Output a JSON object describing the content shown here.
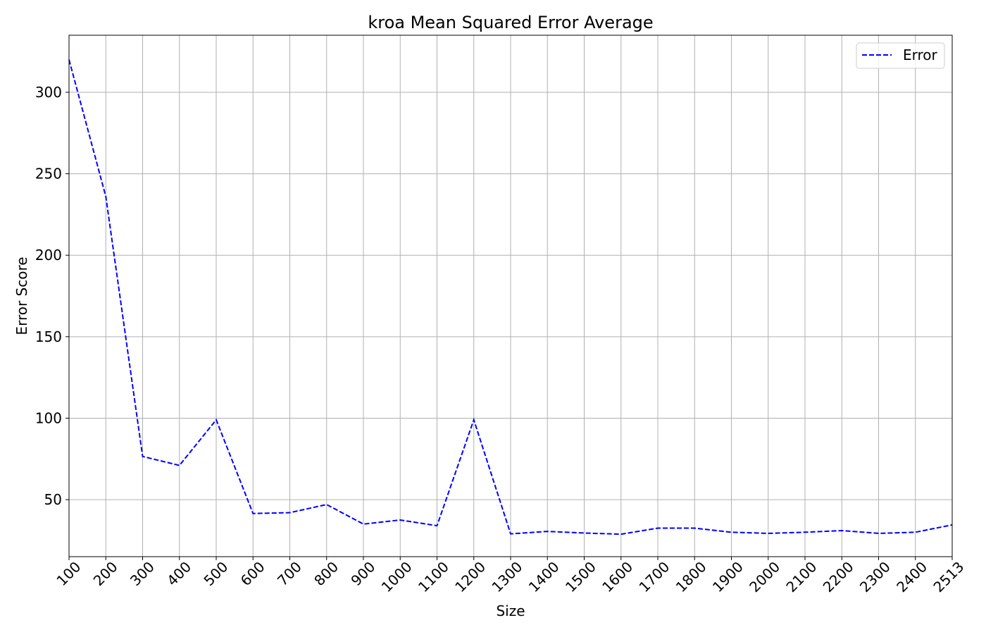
{
  "chart_data": {
    "type": "line",
    "title": "kroa Mean Squared Error Average",
    "xlabel": "Size",
    "ylabel": "Error Score",
    "x_tick_labels": [
      "100",
      "200",
      "300",
      "400",
      "500",
      "600",
      "700",
      "800",
      "900",
      "1000",
      "1100",
      "1200",
      "1300",
      "1400",
      "1500",
      "1600",
      "1700",
      "1800",
      "1900",
      "2000",
      "2100",
      "2200",
      "2300",
      "2400",
      "2513"
    ],
    "y_ticks": [
      50,
      100,
      150,
      200,
      250,
      300
    ],
    "ylim": [
      15,
      335
    ],
    "grid": true,
    "legend_position": "top-right",
    "series": [
      {
        "name": "Error",
        "color": "#0000ff",
        "line_style": "dashed",
        "values": [
          320,
          236,
          76.5,
          71,
          99,
          41.5,
          42,
          47,
          35,
          37.5,
          34,
          99,
          29,
          30.5,
          29.5,
          28.8,
          32.5,
          32.5,
          30,
          29.3,
          30,
          31,
          29.3,
          30,
          34.5
        ]
      }
    ]
  }
}
